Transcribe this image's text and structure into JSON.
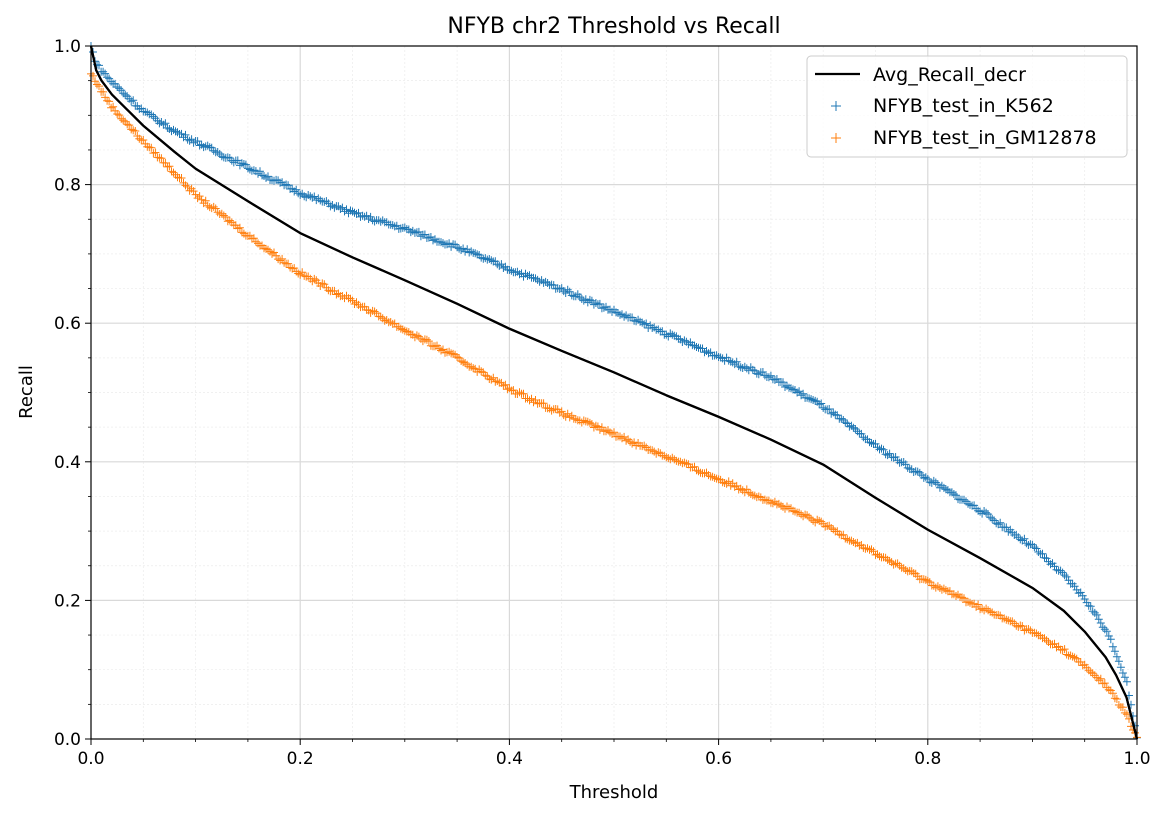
{
  "chart_data": {
    "type": "scatter",
    "title": "NFYB chr2 Threshold vs Recall",
    "xlabel": "Threshold",
    "ylabel": "Recall",
    "xlim": [
      0.0,
      1.0
    ],
    "ylim": [
      0.0,
      1.0
    ],
    "xticks": [
      "0.0",
      "0.2",
      "0.4",
      "0.6",
      "0.8",
      "1.0"
    ],
    "yticks": [
      "0.0",
      "0.2",
      "0.4",
      "0.6",
      "0.8",
      "1.0"
    ],
    "grid": true,
    "minor_grid": true,
    "legend_position": "top-right",
    "x": [
      0.0,
      0.005,
      0.01,
      0.02,
      0.05,
      0.08,
      0.1,
      0.15,
      0.2,
      0.25,
      0.3,
      0.35,
      0.4,
      0.45,
      0.5,
      0.55,
      0.6,
      0.65,
      0.7,
      0.75,
      0.8,
      0.85,
      0.9,
      0.93,
      0.95,
      0.97,
      0.98,
      0.99,
      1.0
    ],
    "series": [
      {
        "name": "Avg_Recall_decr",
        "style": "line",
        "color": "#000000",
        "values": [
          1.0,
          0.965,
          0.95,
          0.93,
          0.885,
          0.847,
          0.823,
          0.776,
          0.73,
          0.695,
          0.662,
          0.628,
          0.592,
          0.56,
          0.529,
          0.496,
          0.465,
          0.432,
          0.396,
          0.348,
          0.302,
          0.261,
          0.218,
          0.185,
          0.155,
          0.118,
          0.092,
          0.06,
          0.0
        ]
      },
      {
        "name": "NFYB_test_in_K562",
        "style": "markers",
        "color": "#1f77b4",
        "values": [
          1.0,
          0.975,
          0.965,
          0.948,
          0.906,
          0.877,
          0.862,
          0.825,
          0.788,
          0.759,
          0.736,
          0.71,
          0.678,
          0.649,
          0.617,
          0.585,
          0.552,
          0.522,
          0.48,
          0.423,
          0.375,
          0.33,
          0.278,
          0.236,
          0.203,
          0.158,
          0.124,
          0.084,
          0.0
        ]
      },
      {
        "name": "NFYB_test_in_GM12878",
        "style": "markers",
        "color": "#ff7f0e",
        "values": [
          0.96,
          0.948,
          0.935,
          0.912,
          0.862,
          0.817,
          0.785,
          0.727,
          0.672,
          0.632,
          0.59,
          0.55,
          0.505,
          0.47,
          0.44,
          0.408,
          0.375,
          0.343,
          0.31,
          0.268,
          0.227,
          0.19,
          0.154,
          0.128,
          0.105,
          0.078,
          0.058,
          0.035,
          0.0
        ]
      }
    ]
  }
}
